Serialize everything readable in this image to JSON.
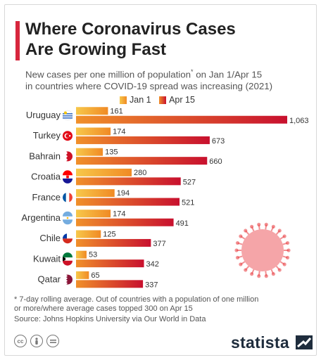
{
  "title": "Where Coronavirus Cases\nAre Growing Fast",
  "subtitle_part1": "New cases per one million of population",
  "subtitle_mark": "*",
  "subtitle_part2": " on Jan 1/Apr 15\nin countries where COVID-19 spread was increasing (2021)",
  "footnote": "* 7-day rolling average. Out of countries with a population of one million\n   or more/where average cases topped 300 on Apr 15",
  "source": "Source: Johns Hopkins University via Our World in Data",
  "brand": "statista",
  "license_icons": [
    "cc-icon",
    "person-icon",
    "equals-icon"
  ],
  "colors": {
    "accent": "#d7263d",
    "jan_start": "#f7c84a",
    "jan_end": "#f08a25",
    "apr_start": "#f0902a",
    "apr_end": "#c8102e",
    "virus": "#e8383d"
  },
  "chart_data": {
    "type": "bar",
    "orientation": "horizontal",
    "categories": [
      "Uruguay",
      "Turkey",
      "Bahrain",
      "Croatia",
      "France",
      "Argentina",
      "Chile",
      "Kuwait",
      "Qatar"
    ],
    "series": [
      {
        "name": "Jan 1",
        "values": [
          161,
          174,
          135,
          280,
          194,
          174,
          125,
          53,
          65
        ],
        "labels": [
          "161",
          "174",
          "135",
          "280",
          "194",
          "174",
          "125",
          "53",
          "65"
        ]
      },
      {
        "name": "Apr 15",
        "values": [
          1063,
          673,
          660,
          527,
          521,
          491,
          377,
          342,
          337
        ],
        "labels": [
          "1,063",
          "673",
          "660",
          "527",
          "521",
          "491",
          "377",
          "342",
          "337"
        ]
      }
    ],
    "xlim": [
      0,
      1063
    ],
    "flags": [
      "uruguay-flag-icon",
      "turkey-flag-icon",
      "bahrain-flag-icon",
      "croatia-flag-icon",
      "france-flag-icon",
      "argentina-flag-icon",
      "chile-flag-icon",
      "kuwait-flag-icon",
      "qatar-flag-icon"
    ],
    "grid": false,
    "legend_position": "top"
  }
}
